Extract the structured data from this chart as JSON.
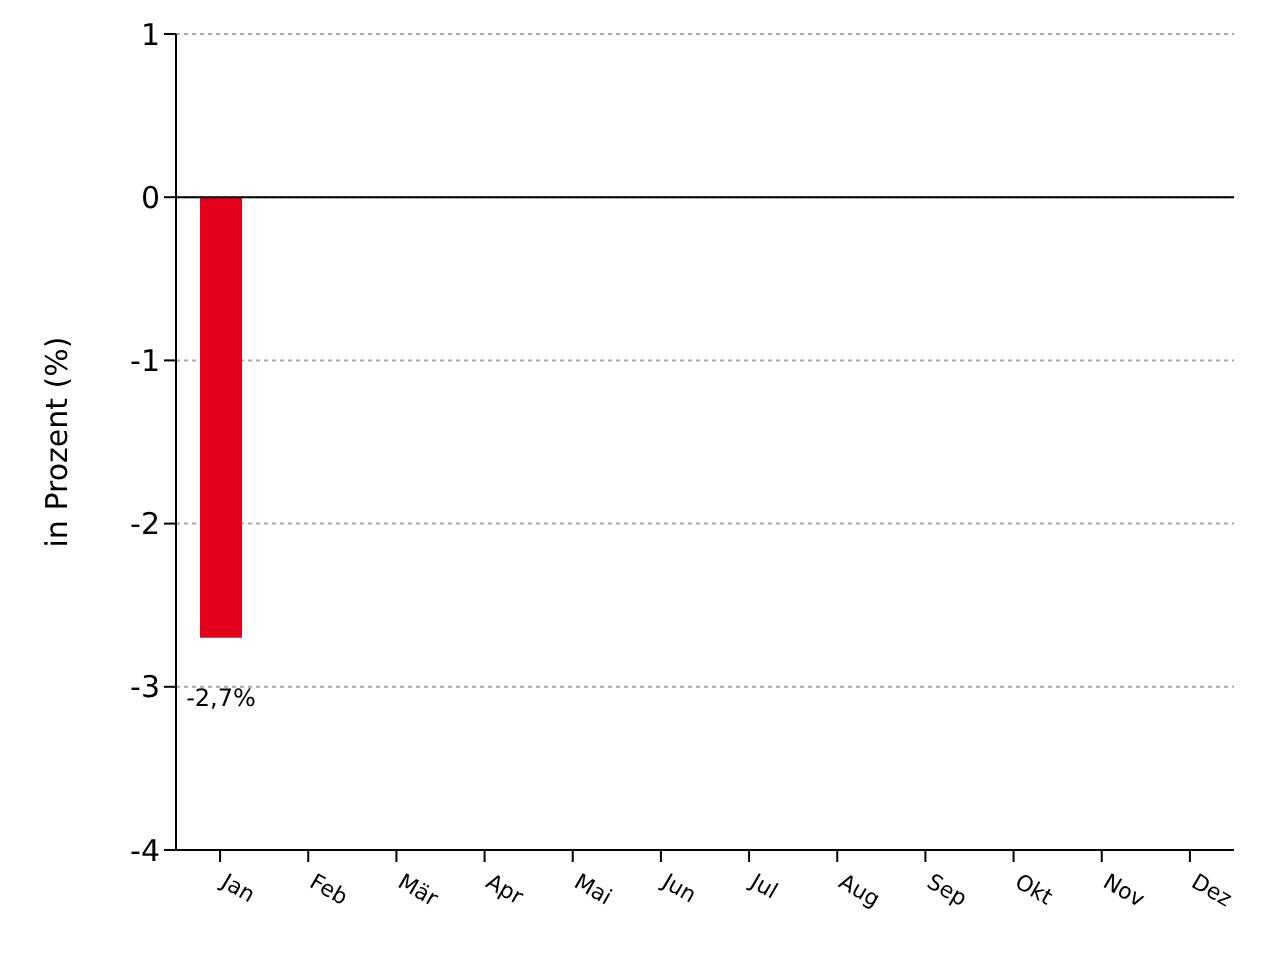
{
  "chart_data": {
    "type": "bar",
    "ylabel": "in Prozent (%)",
    "categories": [
      "Jan",
      "Feb",
      "Mär",
      "Apr",
      "Mai",
      "Jun",
      "Jul",
      "Aug",
      "Sep",
      "Okt",
      "Nov",
      "Dez"
    ],
    "values": [
      -2.7,
      0,
      0,
      0,
      0,
      0,
      0,
      0,
      0,
      0,
      0,
      0
    ],
    "value_labels": [
      "-2,7%",
      null,
      null,
      null,
      null,
      null,
      null,
      null,
      null,
      null,
      null,
      null
    ],
    "color": "#e2001a",
    "ylim": [
      -4,
      1
    ],
    "yticks": [
      -4,
      -3,
      -2,
      -1,
      0,
      1
    ],
    "grid": "y",
    "ref_lines": [
      {
        "axis": "y",
        "value": 0,
        "color": "#000000"
      }
    ]
  }
}
